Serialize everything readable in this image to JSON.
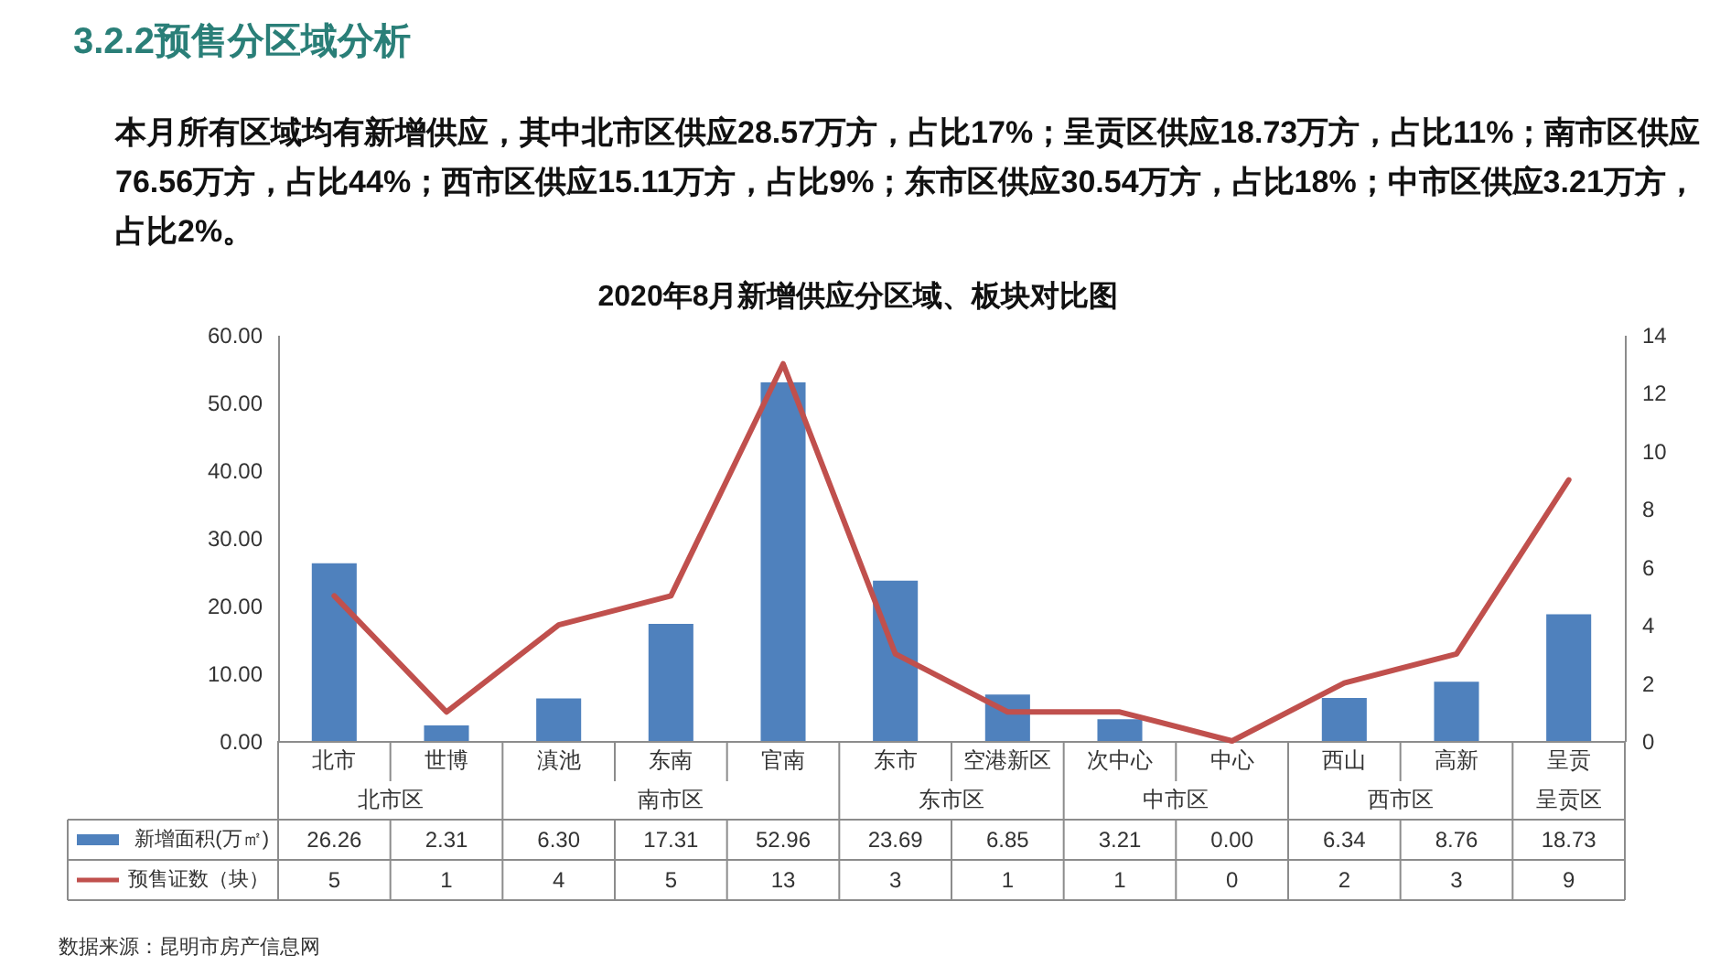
{
  "chart_data": {
    "type": "bar",
    "title": "2020年8月新增供应分区域、板块对比图",
    "subtitle": "本月所有区域均有新增供应，其中北市区供应28.57万方，占比17%；呈贡区供应18.73万方，占比11%；南市区供应76.56万方，占比44%；西市区供应15.11万方，占比9%；东市区供应30.54万方，占比18%；中市区供应3.21万方，占比2%。",
    "annotations": [
      "3.2.2预售分区域分析",
      "北市区",
      "南市区",
      "东市区",
      "中市区",
      "西市区",
      "呈贡区",
      "数据来源：昆明市房产信息网"
    ],
    "categories": [
      "北市",
      "世博",
      "滇池",
      "东南",
      "官南",
      "东市",
      "空港新区",
      "次中心",
      "中心",
      "西山",
      "高新",
      "呈贡"
    ],
    "series": [
      {
        "name": "新增面积(万㎡)",
        "color": "#4f81bd",
        "values": [
          26.26,
          2.31,
          6.3,
          17.31,
          52.96,
          23.69,
          6.85,
          3.21,
          0,
          6.34,
          8.76,
          18.73
        ],
        "value_labels": [
          "26.26",
          "2.31",
          "6.30",
          "17.31",
          "52.96",
          "23.69",
          "6.85",
          "3.21",
          "0.00",
          "6.34",
          "8.76",
          "18.73"
        ]
      },
      {
        "name": "预售证数（块）",
        "type": "line",
        "axis": "y2",
        "color": "#c0504d",
        "values": [
          5,
          1,
          4,
          5,
          13,
          3,
          1,
          1,
          0,
          2,
          3,
          9
        ],
        "value_labels": [
          "5",
          "1",
          "4",
          "5",
          "13",
          "3",
          "1",
          "1",
          "0",
          "2",
          "3",
          "9"
        ]
      }
    ],
    "ylim": [
      0,
      60
    ],
    "yticks": [
      {
        "value": 0,
        "label": "0.00"
      },
      {
        "value": 10,
        "label": "10.00"
      },
      {
        "value": 20,
        "label": "20.00"
      },
      {
        "value": 30,
        "label": "30.00"
      },
      {
        "value": 40,
        "label": "40.00"
      },
      {
        "value": 50,
        "label": "50.00"
      },
      {
        "value": 60,
        "label": "60.00"
      }
    ],
    "y2lim": [
      0,
      14
    ],
    "y2ticks": [
      0,
      2,
      4,
      6,
      8,
      10,
      12,
      14
    ],
    "legend": "bottom",
    "grid": false,
    "marker": "none",
    "line_style": "solid"
  }
}
